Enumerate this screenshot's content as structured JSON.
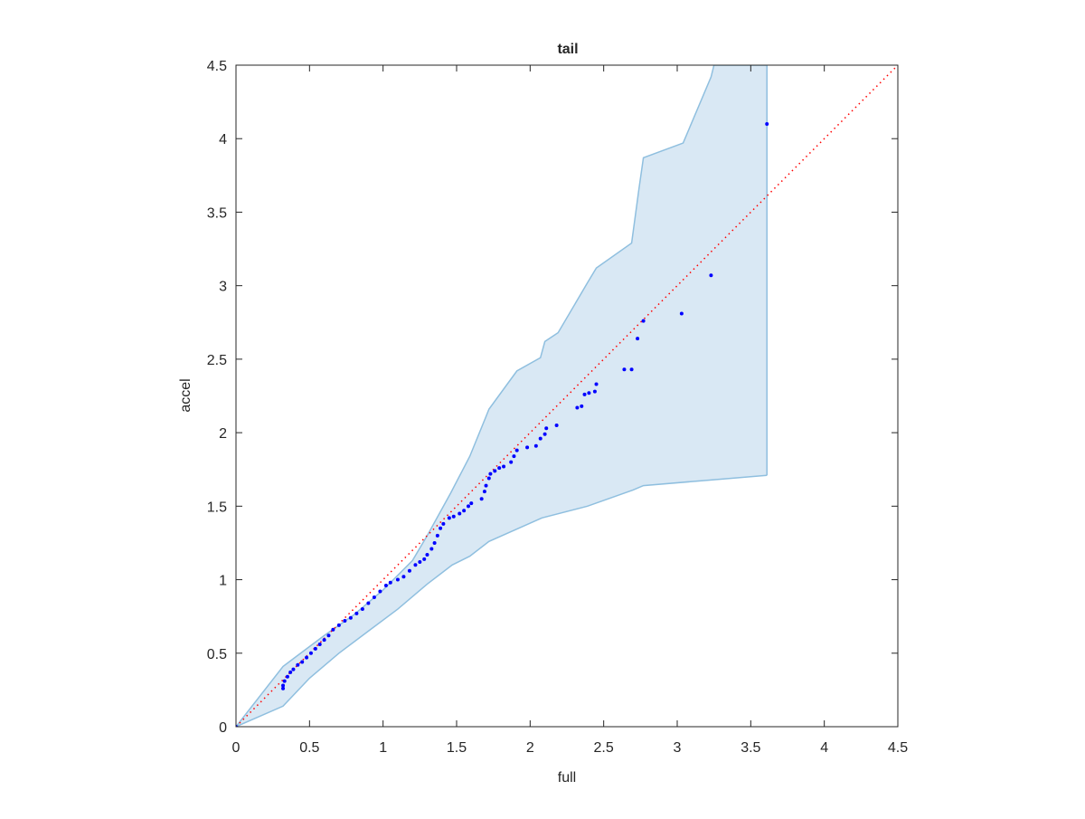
{
  "chart_data": {
    "type": "scatter",
    "title": "tail",
    "xlabel": "full",
    "ylabel": "accel",
    "xlim": [
      0,
      4.5
    ],
    "ylim": [
      0,
      4.5
    ],
    "xticks": [
      0,
      0.5,
      1,
      1.5,
      2,
      2.5,
      3,
      3.5,
      4,
      4.5
    ],
    "yticks": [
      0,
      0.5,
      1,
      1.5,
      2,
      2.5,
      3,
      3.5,
      4,
      4.5
    ],
    "color": "#0000ff",
    "x": [
      0,
      0.32,
      0.32,
      0.33,
      0.35,
      0.37,
      0.39,
      0.42,
      0.45,
      0.48,
      0.51,
      0.54,
      0.57,
      0.6,
      0.63,
      0.66,
      0.7,
      0.74,
      0.78,
      0.82,
      0.86,
      0.9,
      0.94,
      0.98,
      1.02,
      1.05,
      1.1,
      1.14,
      1.18,
      1.22,
      1.25,
      1.28,
      1.3,
      1.33,
      1.35,
      1.37,
      1.39,
      1.41,
      1.45,
      1.48,
      1.52,
      1.55,
      1.58,
      1.6,
      1.67,
      1.69,
      1.7,
      1.72,
      1.73,
      1.76,
      1.79,
      1.82,
      1.87,
      1.89,
      1.91,
      1.98,
      2.04,
      2.07,
      2.1,
      2.11,
      2.18,
      2.32,
      2.35,
      2.37,
      2.4,
      2.44,
      2.45,
      2.64,
      2.69,
      2.73,
      2.77,
      3.03,
      3.23,
      3.61
    ],
    "y": [
      0,
      0.26,
      0.28,
      0.31,
      0.34,
      0.37,
      0.39,
      0.42,
      0.44,
      0.47,
      0.5,
      0.53,
      0.56,
      0.59,
      0.62,
      0.66,
      0.69,
      0.72,
      0.74,
      0.77,
      0.8,
      0.84,
      0.88,
      0.92,
      0.96,
      0.98,
      1.0,
      1.02,
      1.06,
      1.1,
      1.12,
      1.14,
      1.17,
      1.21,
      1.25,
      1.3,
      1.35,
      1.38,
      1.42,
      1.43,
      1.45,
      1.47,
      1.5,
      1.52,
      1.55,
      1.6,
      1.64,
      1.69,
      1.72,
      1.74,
      1.76,
      1.77,
      1.8,
      1.84,
      1.88,
      1.9,
      1.91,
      1.96,
      1.99,
      2.03,
      2.05,
      2.17,
      2.18,
      2.26,
      2.27,
      2.28,
      2.33,
      2.43,
      2.43,
      2.64,
      2.76,
      2.81,
      3.07,
      4.1
    ],
    "band_color": "#d9e8f4",
    "band_edge_color": "#8fbfdf",
    "band_upper": {
      "x": [
        0,
        0.32,
        0.4,
        0.6,
        0.8,
        1.0,
        1.2,
        1.3,
        1.46,
        1.59,
        1.7,
        1.72,
        1.91,
        2.07,
        2.1,
        2.19,
        2.39,
        2.45,
        2.69,
        2.74,
        2.77,
        3.04,
        3.23,
        3.25,
        3.61
      ],
      "y": [
        0,
        0.41,
        0.47,
        0.62,
        0.76,
        0.93,
        1.13,
        1.3,
        1.59,
        1.84,
        2.11,
        2.16,
        2.42,
        2.51,
        2.62,
        2.68,
        3.02,
        3.12,
        3.29,
        3.66,
        3.87,
        3.97,
        4.42,
        4.5,
        4.5
      ]
    },
    "band_lower": {
      "x": [
        0,
        0.32,
        0.5,
        0.7,
        0.9,
        1.1,
        1.3,
        1.47,
        1.59,
        1.72,
        2.08,
        2.39,
        2.7,
        2.77,
        3.25,
        3.61
      ],
      "y": [
        0,
        0.14,
        0.33,
        0.5,
        0.65,
        0.8,
        0.97,
        1.1,
        1.16,
        1.26,
        1.42,
        1.5,
        1.61,
        1.64,
        1.68,
        1.71
      ]
    },
    "reference_line": {
      "color": "#ff0000",
      "x": [
        0,
        4.5
      ],
      "y": [
        0,
        4.5
      ]
    }
  }
}
